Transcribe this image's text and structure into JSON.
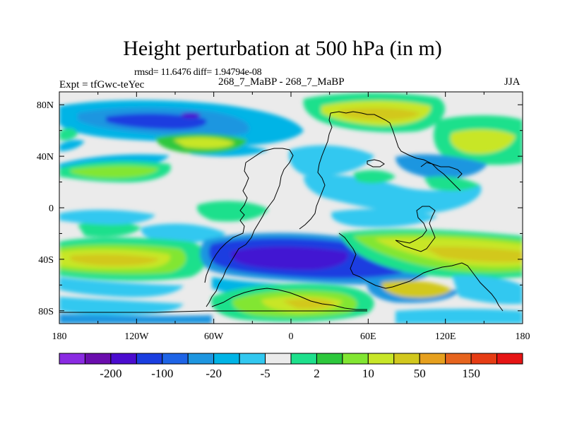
{
  "chart_data": {
    "type": "contour-map",
    "title": "Height perturbation at 500 hPa (in m)",
    "stats": "rmsd= 11.6476  diff= 1.94794e-08",
    "case": "268_7_MaBP - 268_7_MaBP",
    "experiment": "Expt = tfGwc-teYec",
    "season": "JJA",
    "x_ticks": [
      "180",
      "120W",
      "60W",
      "0",
      "60E",
      "120E",
      "180"
    ],
    "y_ticks": [
      "80N",
      "40N",
      "0",
      "40S",
      "80S"
    ],
    "x_tick_values": [
      -180,
      -120,
      -60,
      0,
      60,
      120,
      180
    ],
    "y_tick_values": [
      80,
      40,
      0,
      -40,
      -80
    ],
    "lon_range": [
      -180,
      180
    ],
    "lat_range": [
      -90,
      90
    ],
    "colorbar_levels": [
      "-200",
      "-100",
      "-20",
      "-5",
      "2",
      "10",
      "50",
      "150"
    ],
    "colorbar_colors": [
      "#8a2be2",
      "#6a0dad",
      "#4b0ccf",
      "#1a3ee0",
      "#1e64e6",
      "#1e96e0",
      "#00b4e6",
      "#32c8f0",
      "#ebebeb",
      "#1ee08c",
      "#2dc83c",
      "#82e632",
      "#c8e628",
      "#d2c81e",
      "#e6a01e",
      "#e6641e",
      "#e63c14",
      "#e61414"
    ]
  }
}
